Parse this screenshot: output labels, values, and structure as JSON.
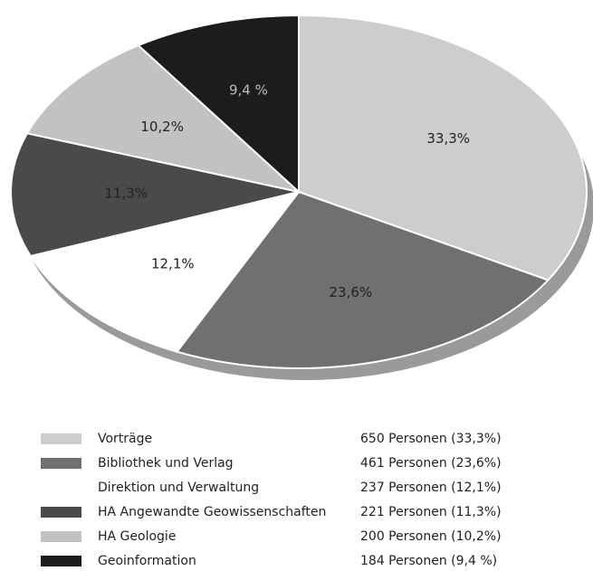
{
  "chart_data": {
    "type": "pie",
    "categories": [
      "Vorträge",
      "Bibliothek und Verlag",
      "Direktion und Verwaltung",
      "HA Angewandte Geowissenschaften",
      "HA Geologie",
      "Geoinformation"
    ],
    "values": [
      33.3,
      23.6,
      12.1,
      11.3,
      10.2,
      9.4
    ],
    "value_labels": [
      "33,3%",
      "23,6%",
      "12,1%",
      "11,3%",
      "10,2%",
      "9,4 %"
    ],
    "colors": [
      "#cdcdcd",
      "#707070",
      "#ffffff",
      "#4a4a4a",
      "#c2c2c2",
      "#1c1c1c"
    ],
    "legend_values": [
      "650 Personen (33,3%)",
      "461 Personen (23,6%)",
      "237 Personen (12,1%)",
      "221 Personen (11,3%)",
      "200 Personen (10,2%)",
      "184 Personen (9,4 %)"
    ]
  }
}
